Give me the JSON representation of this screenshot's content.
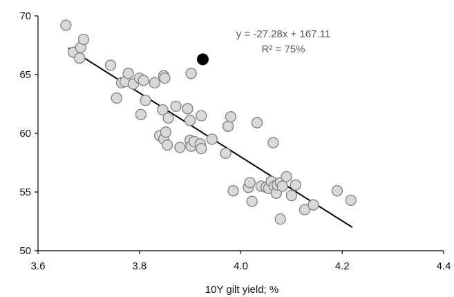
{
  "chart_data": {
    "type": "scatter",
    "title": "",
    "xlabel": "10Y gilt yield; %",
    "ylabel": "",
    "xlim": [
      3.6,
      4.4
    ],
    "ylim": [
      50,
      70
    ],
    "x_ticks": [
      "3.6",
      "3.8",
      "4.0",
      "4.2",
      "4.4"
    ],
    "y_ticks": [
      "50",
      "55",
      "60",
      "65",
      "70"
    ],
    "grid": false,
    "legend": "none",
    "trendline": {
      "slope": -27.28,
      "intercept": 167.11,
      "x_range": [
        3.66,
        4.22
      ],
      "equation_label": "y = -27.28x + 167.11",
      "r2_label": "R² = 75%"
    },
    "colors": {
      "point_fill": "#d9d9d9",
      "point_stroke": "#7f7f7f",
      "highlight": "#000000",
      "trendline": "#000000"
    },
    "series": [
      {
        "points": [
          [
            3.655,
            69.2
          ],
          [
            3.67,
            66.9
          ],
          [
            3.682,
            66.4
          ],
          [
            3.684,
            67.3
          ],
          [
            3.69,
            68.0
          ],
          [
            3.743,
            65.8
          ],
          [
            3.755,
            63.0
          ],
          [
            3.765,
            64.3
          ],
          [
            3.772,
            64.4
          ],
          [
            3.778,
            65.1
          ],
          [
            3.788,
            64.2
          ],
          [
            3.8,
            64.7
          ],
          [
            3.803,
            61.6
          ],
          [
            3.812,
            62.8
          ],
          [
            3.808,
            64.5
          ],
          [
            3.83,
            64.3
          ],
          [
            3.846,
            62.0
          ],
          [
            3.848,
            64.9
          ],
          [
            3.85,
            64.7
          ],
          [
            3.84,
            59.8
          ],
          [
            3.848,
            59.5
          ],
          [
            3.852,
            60.1
          ],
          [
            3.857,
            61.3
          ],
          [
            3.855,
            59.0
          ],
          [
            3.872,
            62.3
          ],
          [
            3.88,
            58.8
          ],
          [
            3.895,
            62.1
          ],
          [
            3.9,
            61.1
          ],
          [
            3.902,
            65.1
          ],
          [
            3.9,
            59.4
          ],
          [
            3.902,
            58.9
          ],
          [
            3.908,
            59.3
          ],
          [
            3.922,
            61.5
          ],
          [
            3.92,
            59.1
          ],
          [
            3.922,
            58.7
          ],
          [
            3.943,
            59.5
          ],
          [
            3.97,
            58.3
          ],
          [
            3.975,
            60.6
          ],
          [
            3.98,
            61.4
          ],
          [
            3.985,
            55.1
          ],
          [
            4.015,
            55.4
          ],
          [
            4.018,
            55.8
          ],
          [
            4.022,
            54.2
          ],
          [
            4.032,
            60.9
          ],
          [
            4.04,
            55.5
          ],
          [
            4.05,
            55.4
          ],
          [
            4.055,
            55.3
          ],
          [
            4.06,
            55.9
          ],
          [
            4.064,
            59.2
          ],
          [
            4.066,
            55.5
          ],
          [
            4.07,
            54.9
          ],
          [
            4.072,
            55.6
          ],
          [
            4.078,
            55.8
          ],
          [
            4.082,
            55.5
          ],
          [
            4.078,
            52.7
          ],
          [
            4.09,
            56.3
          ],
          [
            4.1,
            54.7
          ],
          [
            4.108,
            55.6
          ],
          [
            4.126,
            53.5
          ],
          [
            4.143,
            53.9
          ],
          [
            4.19,
            55.1
          ],
          [
            4.217,
            54.3
          ]
        ]
      },
      {
        "highlight": true,
        "points": [
          [
            3.925,
            66.3
          ]
        ]
      }
    ]
  }
}
